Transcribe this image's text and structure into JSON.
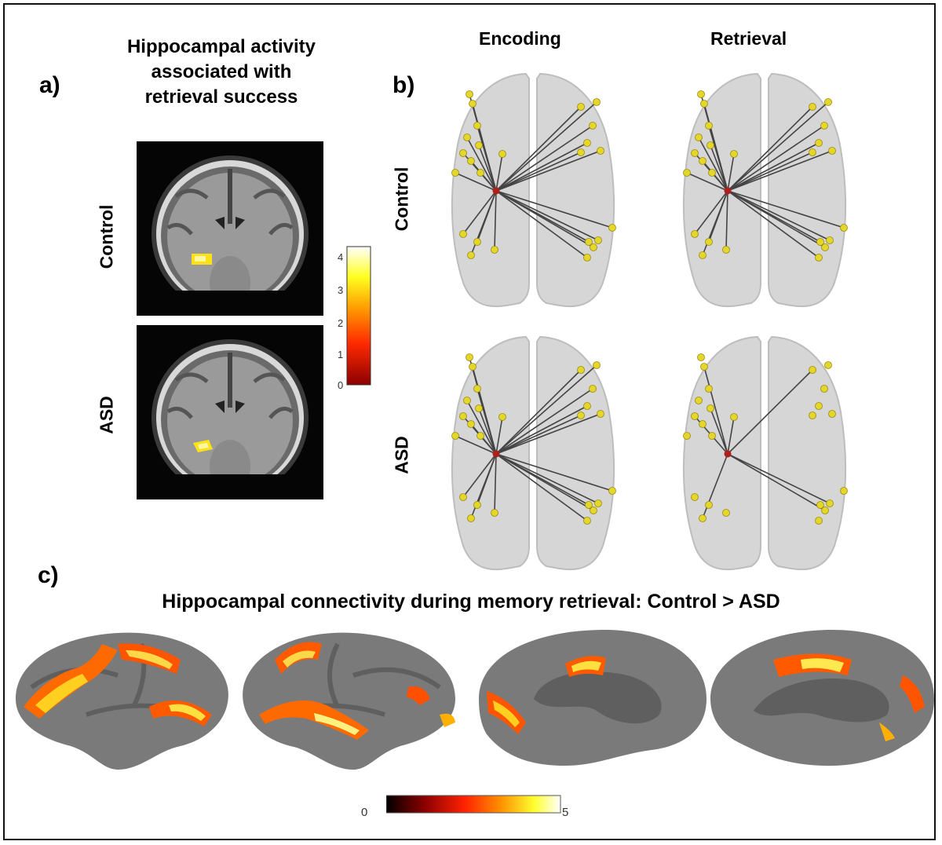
{
  "panel_a": {
    "letter": "a)",
    "title_lines": [
      "Hippocampal activity",
      "associated with",
      "retrieval success"
    ],
    "row_labels": [
      "Control",
      "ASD"
    ],
    "colorbar": {
      "ticks": [
        "4",
        "3",
        "2",
        "1",
        "0"
      ],
      "colors": [
        "#8b0000",
        "#ff2a00",
        "#ff9a00",
        "#ffff20",
        "#ffffff"
      ]
    }
  },
  "panel_b": {
    "letter": "b)",
    "column_headers": [
      "Encoding",
      "Retrieval"
    ],
    "row_labels": [
      "Control",
      "ASD"
    ],
    "node_color": "#e5d62a",
    "seed_color": "#b0201a"
  },
  "panel_c": {
    "letter": "c)",
    "title": "Hippocampal connectivity during memory retrieval: Control > ASD",
    "colorbar": {
      "min_label": "0",
      "max_label": "5",
      "colors": [
        "#000000",
        "#8b0000",
        "#ff2200",
        "#ff8c00",
        "#ffff30",
        "#ffffff"
      ]
    }
  }
}
